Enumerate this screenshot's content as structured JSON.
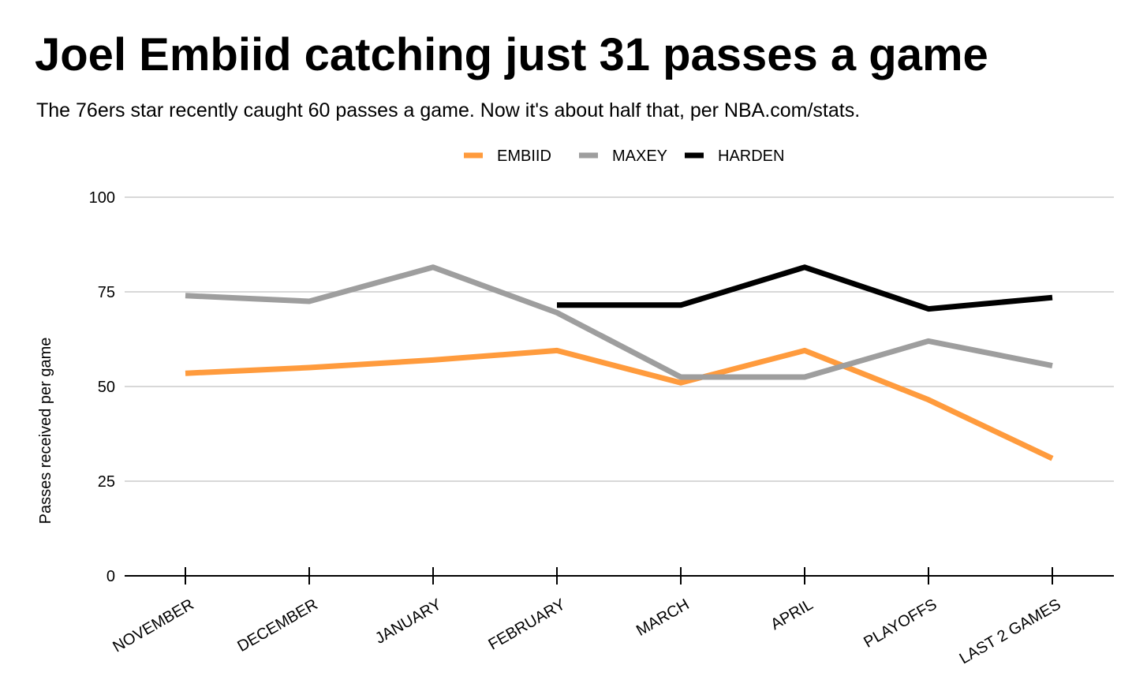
{
  "title": "Joel Embiid catching just 31 passes a game",
  "subtitle": "The 76ers star recently caught 60 passes a game. Now it's about half that, per NBA.com/stats.",
  "chart_data": {
    "type": "line",
    "title": "Joel Embiid catching just 31 passes a game",
    "subtitle": "The 76ers star recently caught 60 passes a game. Now it's about half that, per NBA.com/stats.",
    "xlabel": "",
    "ylabel": "Passes received per game",
    "categories": [
      "NOVEMBER",
      "DECEMBER",
      "JANUARY",
      "FEBRUARY",
      "MARCH",
      "APRIL",
      "PLAYOFFS",
      "LAST 2 GAMES"
    ],
    "ylim": [
      0,
      100
    ],
    "yticks": [
      0,
      25,
      50,
      75,
      100
    ],
    "grid": true,
    "legend_position": "top-center",
    "series": [
      {
        "name": "EMBIID",
        "color": "#ff9b3d",
        "values": [
          53.5,
          55,
          57,
          59.5,
          51,
          59.5,
          46.5,
          31
        ]
      },
      {
        "name": "MAXEY",
        "color": "#9e9e9e",
        "values": [
          74,
          72.5,
          81.5,
          69.5,
          52.5,
          52.5,
          62,
          55.5
        ]
      },
      {
        "name": "HARDEN",
        "color": "#000000",
        "values": [
          null,
          null,
          null,
          71.5,
          71.5,
          81.5,
          70.5,
          73.5
        ]
      }
    ]
  }
}
